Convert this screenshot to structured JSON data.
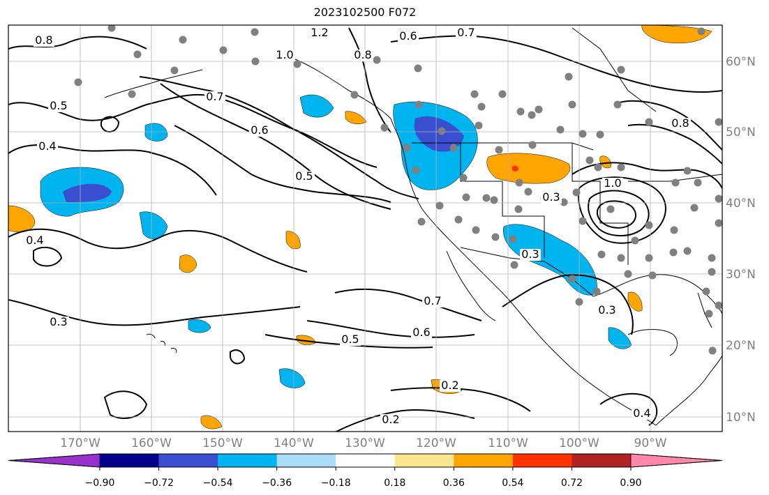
{
  "title": "2023102500 F072",
  "map": {
    "lon_labels": [
      "170°W",
      "160°W",
      "150°W",
      "140°W",
      "130°W",
      "120°W",
      "110°W",
      "100°W",
      "90°W"
    ],
    "lat_labels": [
      "60°N",
      "50°N",
      "40°N",
      "30°N",
      "20°N",
      "10°N"
    ],
    "contour_labels": [
      "0.8",
      "1.2",
      "1.0",
      "0.8",
      "0.6",
      "0.7",
      "0.5",
      "0.4",
      "0.7",
      "0.6",
      "0.5",
      "0.4",
      "0.3",
      "0.7",
      "0.6",
      "0.5",
      "0.2",
      "0.2",
      "0.3",
      "0.3",
      "1.0",
      "0.8",
      "0.4",
      "0.3"
    ],
    "fill_colors": {
      "neg_strong": "#3a4fcf",
      "neg": "#00b4f0",
      "pos": "#ffa500",
      "pos_strong": "#ff3300"
    },
    "station_color": "#808080",
    "grid": true
  },
  "colorbar": {
    "colors": [
      "#9932cc",
      "#00008b",
      "#3a4fcf",
      "#00b4f0",
      "#aadcfa",
      "#ffffff",
      "#fae68c",
      "#ffa500",
      "#ff3300",
      "#b22222",
      "#ff88aa"
    ],
    "tick_labels": [
      "−0.90",
      "−0.72",
      "−0.54",
      "−0.36",
      "−0.18",
      "0.18",
      "0.36",
      "0.54",
      "0.72",
      "0.90"
    ]
  }
}
